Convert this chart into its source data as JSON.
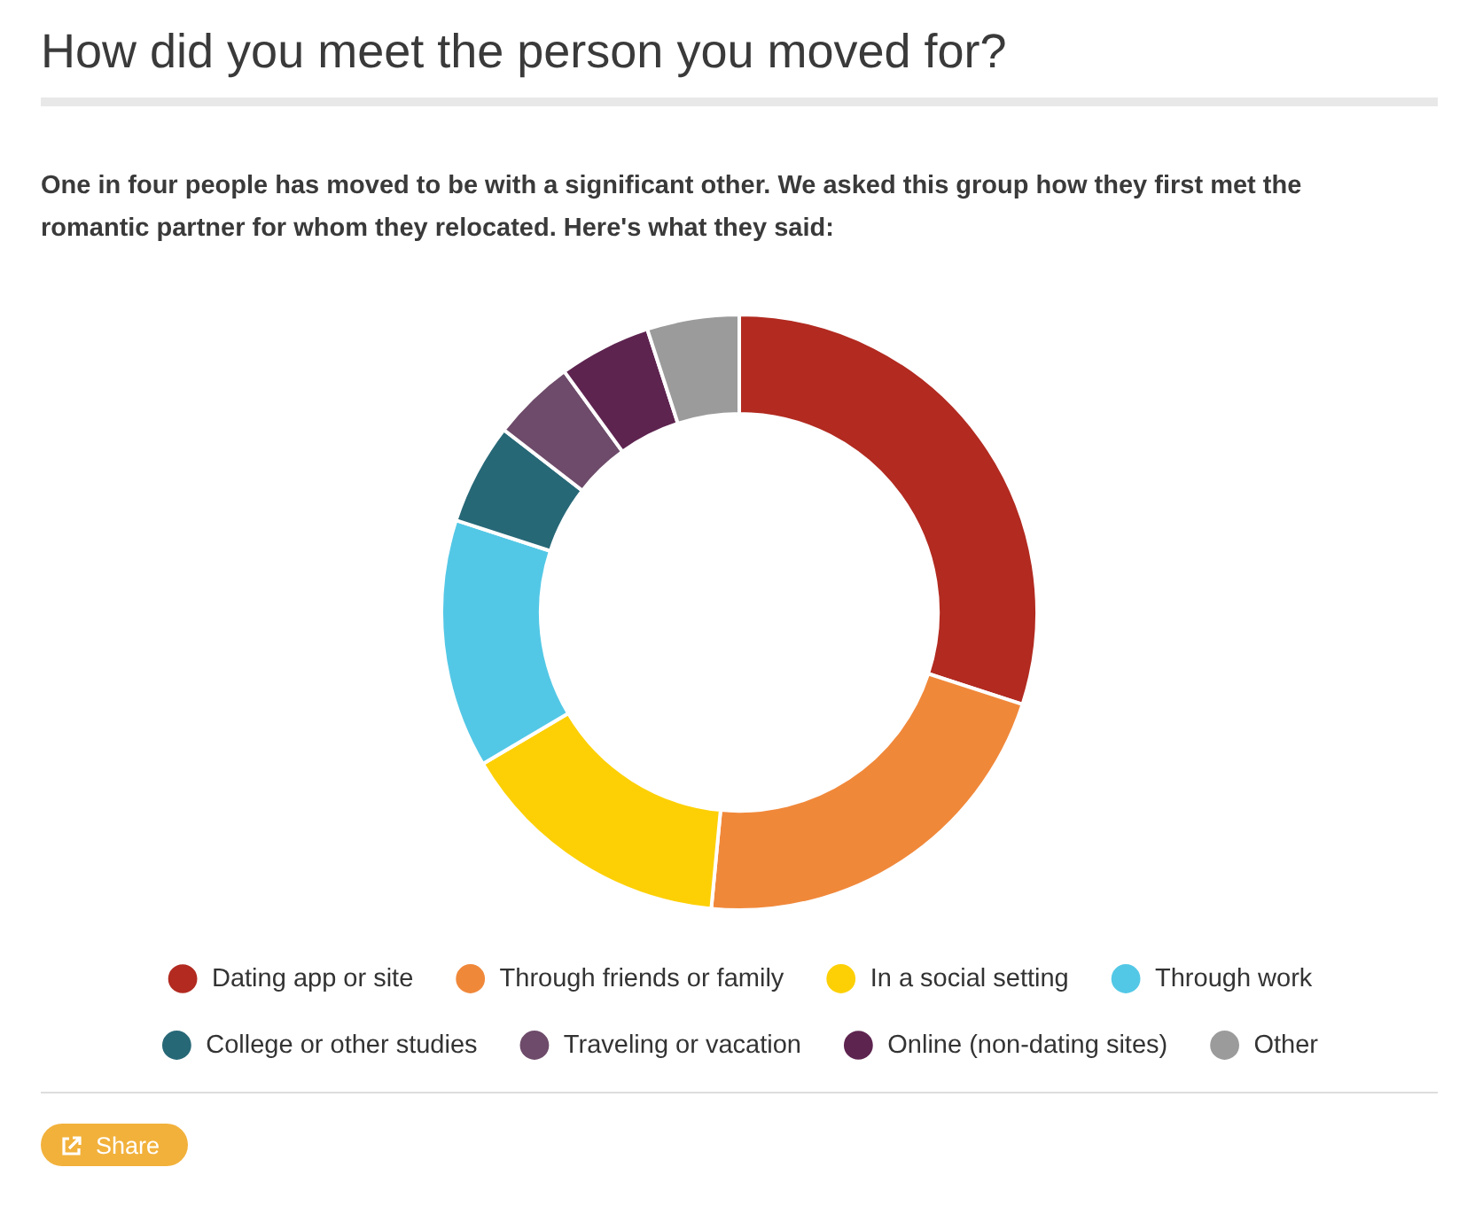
{
  "chart_data": {
    "type": "donut",
    "title": "How did you meet the person you moved for?",
    "subtitle": "One in four people has moved to be with a significant other. We asked this group how they first met the romantic partner for whom they relocated. Here's what they said:",
    "categories": [
      "Dating app or site",
      "Through friends or family",
      "In a social setting",
      "Through work",
      "College or other studies",
      "Traveling or vacation",
      "Online (non-dating sites)",
      "Other"
    ],
    "values": [
      30,
      21.5,
      15,
      13.5,
      5.5,
      4.5,
      5,
      5
    ],
    "colors": [
      "#b22a20",
      "#f0883a",
      "#fdd005",
      "#53c8e6",
      "#276877",
      "#6e4b6a",
      "#5e2450",
      "#9b9b9b"
    ],
    "legend": "bottom",
    "annotations": [
      "Share"
    ]
  }
}
